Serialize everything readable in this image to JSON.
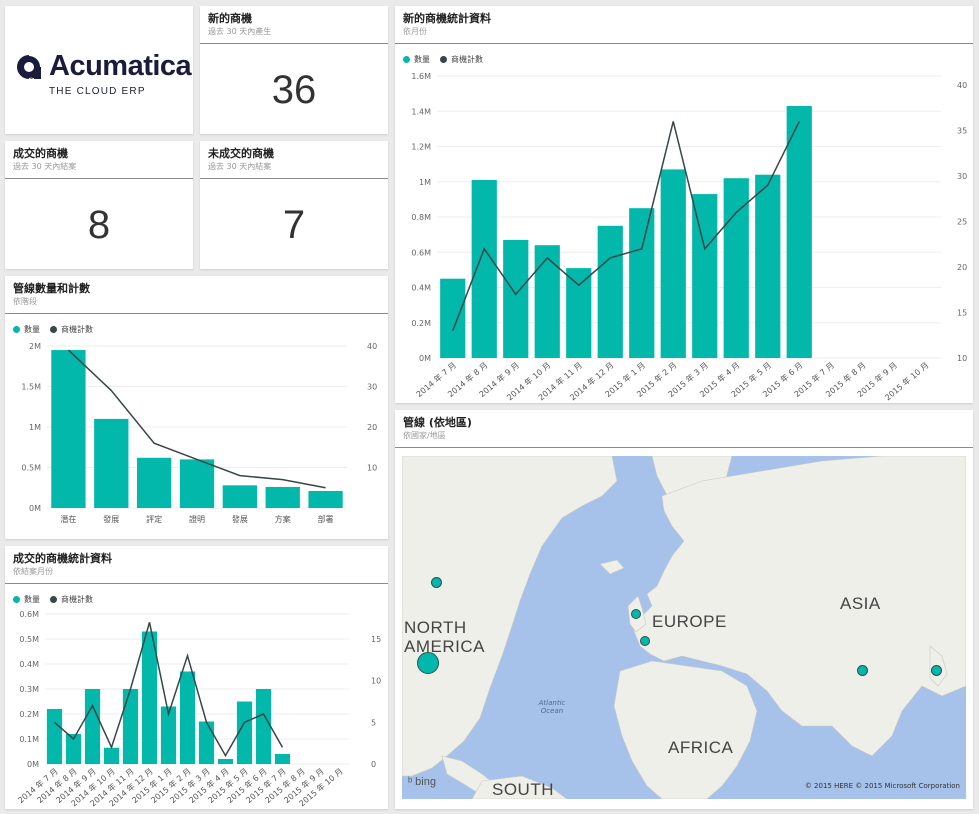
{
  "logo": {
    "name": "Acumatica",
    "tagline": "THE CLOUD ERP"
  },
  "tiles": {
    "new_opps": {
      "title": "新的商機",
      "subtitle": "過去 30 天內產生",
      "value": "36"
    },
    "won_opps": {
      "title": "成交的商機",
      "subtitle": "過去 30 天內結案",
      "value": "8"
    },
    "lost_opps": {
      "title": "未成交的商機",
      "subtitle": "過去 30 天內結案",
      "value": "7"
    },
    "pipeline": {
      "title": "管線數量和計數",
      "subtitle": "依階段"
    },
    "won_stats": {
      "title": "成交的商機統計資料",
      "subtitle": "依結案月份"
    },
    "new_stats": {
      "title": "新的商機統計資料",
      "subtitle": "依月份"
    },
    "map": {
      "title": "管線 (依地區)",
      "subtitle": "依國家/地區"
    }
  },
  "legend": {
    "amount": "數量",
    "count": "商機計數"
  },
  "colors": {
    "bar": "#01b8aa",
    "line": "#374649"
  },
  "map": {
    "labels": {
      "north_america": "NORTH AMERICA",
      "europe": "EUROPE",
      "asia": "ASIA",
      "africa": "AFRICA",
      "south": "SOUTH",
      "atlantic": "Atlantic Ocean"
    },
    "attribution": "© 2015 HERE   © 2015 Microsoft Corporation",
    "bing": "bing",
    "bubble_regions": [
      "Canada",
      "United States",
      "United Kingdom",
      "France",
      "China",
      "Japan"
    ]
  },
  "chart_data": [
    {
      "id": "pipeline",
      "type": "bar",
      "categories": [
        "潛在",
        "發展",
        "評定",
        "證明",
        "發展",
        "方案",
        "部署"
      ],
      "series": [
        {
          "name": "數量",
          "type": "bar",
          "axis": "left",
          "values": [
            1950000,
            1100000,
            620000,
            600000,
            280000,
            260000,
            210000
          ]
        },
        {
          "name": "商機計數",
          "type": "line",
          "axis": "right",
          "values": [
            39,
            29,
            16,
            12,
            8,
            7,
            5
          ]
        }
      ],
      "y_left": {
        "ticks": [
          "0M",
          "0.5M",
          "1M",
          "1.5M",
          "2M"
        ],
        "range": [
          0,
          2000000
        ]
      },
      "y_right": {
        "ticks": [
          "10",
          "20",
          "30",
          "40"
        ],
        "range": [
          0,
          40
        ]
      }
    },
    {
      "id": "won_stats",
      "type": "bar",
      "categories": [
        "2014 年 7 月",
        "2014 年 8 月",
        "2014 年 9 月",
        "2014 年 10 月",
        "2014 年 11 月",
        "2014 年 12 月",
        "2015 年 1 月",
        "2015 年 2 月",
        "2015 年 3 月",
        "2015 年 4 月",
        "2015 年 5 月",
        "2015 年 6 月",
        "2015 年 7 月",
        "2015 年 8 月",
        "2015 年 9 月",
        "2015 年 10 月"
      ],
      "series": [
        {
          "name": "數量",
          "type": "bar",
          "axis": "left",
          "values": [
            220000,
            120000,
            300000,
            65000,
            300000,
            530000,
            230000,
            370000,
            170000,
            20000,
            250000,
            300000,
            40000,
            null,
            null,
            null
          ]
        },
        {
          "name": "商機計數",
          "type": "line",
          "axis": "right",
          "values": [
            5,
            3,
            7,
            2,
            9,
            17,
            6,
            13,
            5,
            1,
            5,
            6,
            2,
            null,
            null,
            null
          ]
        }
      ],
      "y_left": {
        "ticks": [
          "0M",
          "0.1M",
          "0.2M",
          "0.3M",
          "0.4M",
          "0.5M",
          "0.6M"
        ],
        "range": [
          0,
          600000
        ]
      },
      "y_right": {
        "ticks": [
          "0",
          "5",
          "10",
          "15"
        ],
        "range": [
          0,
          18
        ]
      }
    },
    {
      "id": "new_stats",
      "type": "bar",
      "categories": [
        "2014 年 7 月",
        "2014 年 8 月",
        "2014 年 9 月",
        "2014 年 10 月",
        "2014 年 11 月",
        "2014 年 12 月",
        "2015 年 1 月",
        "2015 年 2 月",
        "2015 年 3 月",
        "2015 年 4 月",
        "2015 年 5 月",
        "2015 年 6 月",
        "2015 年 7 月",
        "2015 年 8 月",
        "2015 年 9 月",
        "2015 年 10 月"
      ],
      "series": [
        {
          "name": "數量",
          "type": "bar",
          "axis": "left",
          "values": [
            450000,
            1010000,
            670000,
            640000,
            510000,
            750000,
            850000,
            1070000,
            930000,
            1020000,
            1040000,
            1430000,
            null,
            null,
            null,
            null
          ]
        },
        {
          "name": "商機計數",
          "type": "line",
          "axis": "right",
          "values": [
            13,
            22,
            17,
            21,
            18,
            21,
            22,
            36,
            22,
            26,
            29,
            36,
            null,
            null,
            null,
            null
          ]
        }
      ],
      "y_left": {
        "ticks": [
          "0M",
          "0.2M",
          "0.4M",
          "0.6M",
          "0.8M",
          "1M",
          "1.2M",
          "1.4M",
          "1.6M"
        ],
        "range": [
          0,
          1600000
        ]
      },
      "y_right": {
        "ticks": [
          "10",
          "15",
          "20",
          "25",
          "30",
          "35",
          "40"
        ],
        "range": [
          10,
          41
        ]
      }
    }
  ]
}
